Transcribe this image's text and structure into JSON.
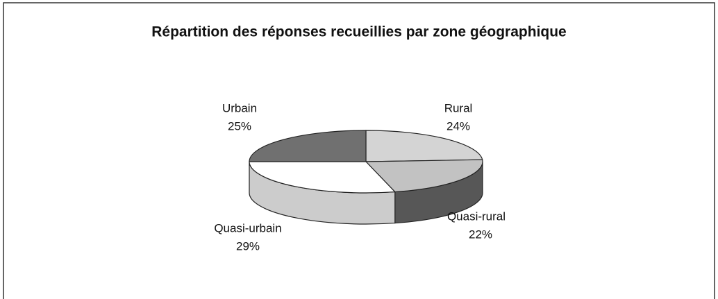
{
  "chart_data": {
    "type": "pie",
    "title": "Répartition des réponses recueillies par zone géographique",
    "categories": [
      "Rural",
      "Quasi-rural",
      "Quasi-urbain",
      "Urbain"
    ],
    "values": [
      24,
      22,
      29,
      25
    ],
    "value_labels": [
      "24%",
      "22%",
      "29%",
      "25%"
    ],
    "colors": [
      "#d4d4d4",
      "#c2c2c2",
      "#ffffff",
      "#707070"
    ]
  }
}
